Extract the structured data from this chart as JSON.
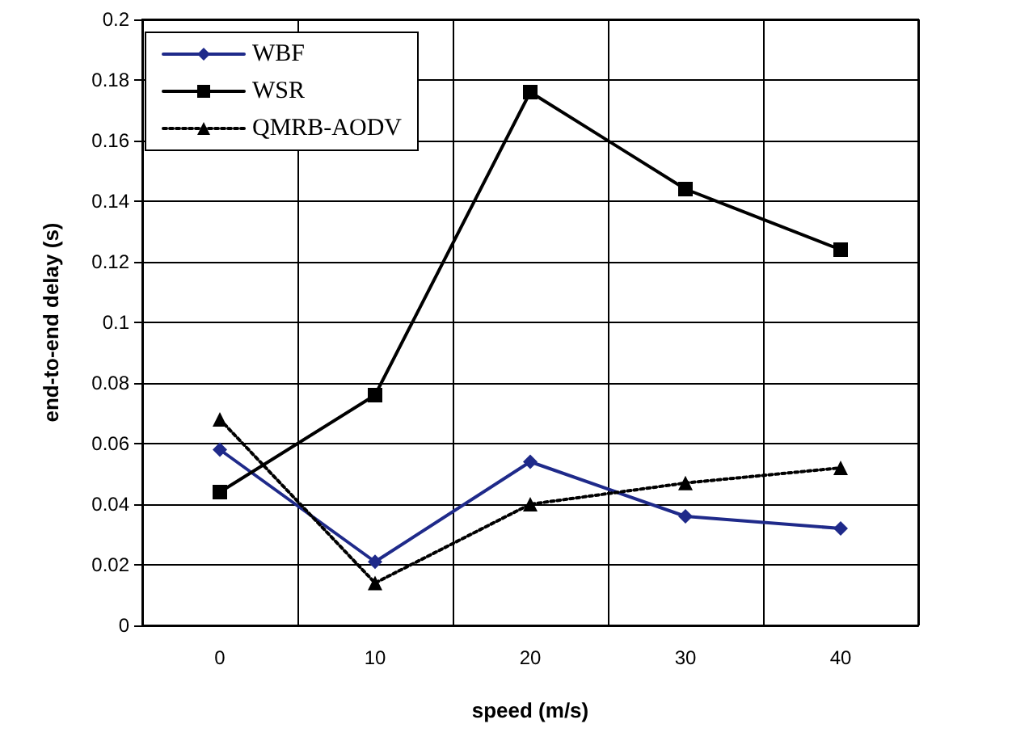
{
  "chart_data": {
    "type": "line",
    "xlabel": "speed (m/s)",
    "ylabel": "end-to-end delay (s)",
    "categories": [
      "0",
      "10",
      "20",
      "30",
      "40"
    ],
    "series": [
      {
        "name": "WBF",
        "color": "#1f2a8a",
        "marker": "diamond",
        "line_style": "solid",
        "values": [
          0.058,
          0.021,
          0.054,
          0.036,
          0.032
        ]
      },
      {
        "name": "WSR",
        "color": "#000000",
        "marker": "square",
        "line_style": "solid",
        "values": [
          0.044,
          0.076,
          0.176,
          0.144,
          0.124
        ]
      },
      {
        "name": "QMRB-AODV",
        "color": "#000000",
        "marker": "triangle",
        "line_style": "dotted",
        "values": [
          0.068,
          0.014,
          0.04,
          0.047,
          0.052
        ]
      }
    ],
    "ylim": [
      0,
      0.2
    ],
    "yticks": [
      0,
      0.02,
      0.04,
      0.06,
      0.08,
      0.1,
      0.12,
      0.14,
      0.16,
      0.18,
      0.2
    ],
    "grid": true,
    "legend": "top left"
  }
}
